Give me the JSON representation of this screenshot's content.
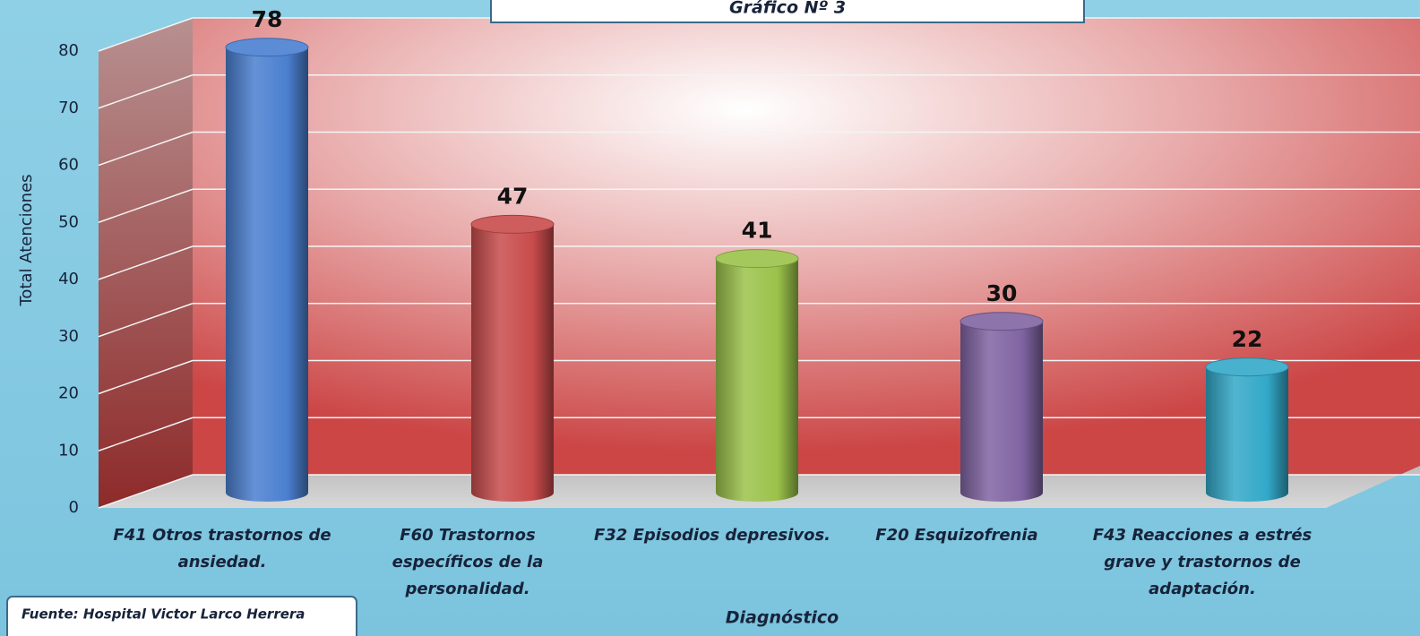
{
  "chart_data": {
    "type": "bar",
    "title": "Gráfico Nº 3",
    "categories": [
      "F41 Otros trastornos de ansiedad.",
      "F60 Trastornos específicos de la personalidad.",
      "F32 Episodios depresivos.",
      "F20 Esquizofrenia",
      "F43 Reacciones a estrés grave y trastornos de adaptación."
    ],
    "values": [
      78,
      47,
      41,
      30,
      22
    ],
    "colors": [
      "#4a7fd0",
      "#c84b4b",
      "#9bc24a",
      "#8064a2",
      "#32a8c8"
    ],
    "ylabel": "Total Atenciones",
    "xlabel": "Diagnóstico",
    "source": "Fuente:  Hospital Victor Larco Herrera",
    "ylim": [
      0,
      80
    ],
    "yticks": [
      0,
      10,
      20,
      30,
      40,
      50,
      60,
      70,
      80
    ],
    "grid": true
  }
}
